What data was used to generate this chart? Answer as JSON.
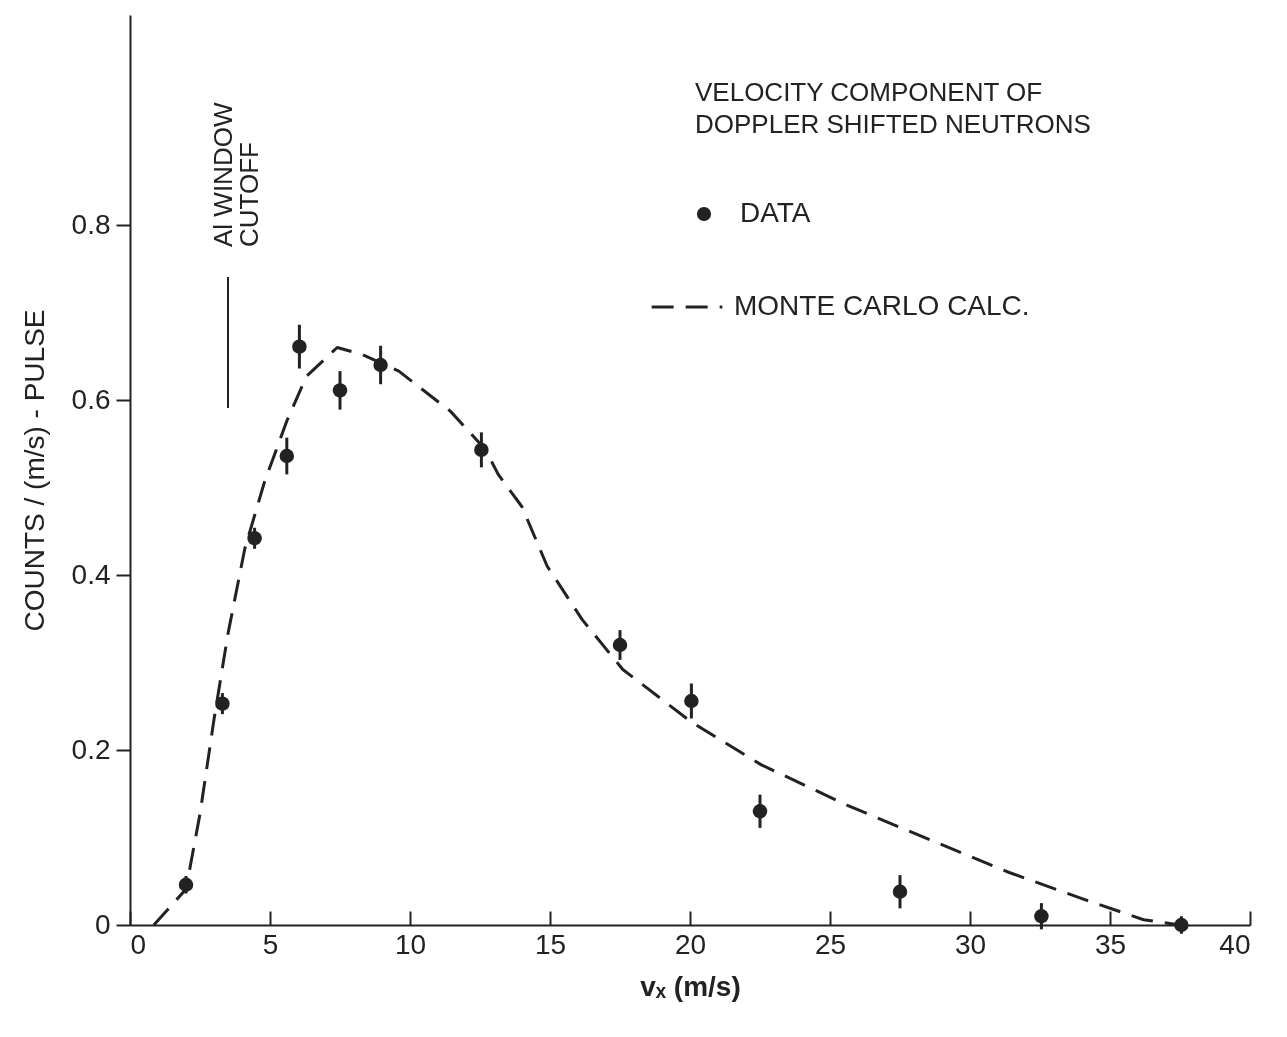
{
  "chart_data": {
    "type": "scatter",
    "title": "VELOCITY COMPONENT OF\nDOPPLER SHIFTED NEUTRONS",
    "xlabel": "vₓ (m/s)",
    "ylabel": "COUNTS / (m/s) - PULSE",
    "xlim": [
      0,
      40
    ],
    "xticks": [
      0,
      5,
      10,
      15,
      20,
      25,
      30,
      35,
      40
    ],
    "ylim": [
      0,
      1.04
    ],
    "yticks": [
      0,
      0.2,
      0.4,
      0.6,
      0.8
    ],
    "legend": "top right",
    "grid": false,
    "annotations": [
      "Al WINDOW\nCUTOFF"
    ],
    "series": [
      {
        "name": "DATA",
        "marker": "circle",
        "color": "#222222",
        "x": [
          2,
          3.3,
          4.45,
          5.6,
          6.05,
          7.5,
          8.95,
          12.55,
          17.5,
          20.05,
          22.5,
          27.5,
          32.55,
          37.55
        ],
        "values": [
          0.046,
          0.253,
          0.442,
          0.536,
          0.661,
          0.611,
          0.64,
          0.543,
          0.32,
          0.256,
          0.13,
          0.038,
          0.01,
          0
        ],
        "errors": [
          0.01,
          0.012,
          0.012,
          0.021,
          0.025,
          0.022,
          0.022,
          0.02,
          0.017,
          0.02,
          0.019,
          0.019,
          0.015,
          0.01
        ]
      },
      {
        "name": "MONTE CARLO CALC.",
        "type": "line",
        "line_style": "dashed",
        "color": "#222222",
        "x": [
          0.85,
          2,
          2.5,
          3,
          3.5,
          4.1,
          4.8,
          5.6,
          6.3,
          7.4,
          8.3,
          9.6,
          11.45,
          12.7,
          13.15,
          14,
          14.9,
          16.15,
          17.6,
          20.05,
          22.55,
          25.6,
          28.6,
          31.4,
          34.1,
          36.2,
          37.5
        ],
        "values": [
          0,
          0.041,
          0.127,
          0.235,
          0.333,
          0.43,
          0.506,
          0.576,
          0.627,
          0.66,
          0.652,
          0.633,
          0.587,
          0.543,
          0.515,
          0.478,
          0.41,
          0.349,
          0.292,
          0.232,
          0.183,
          0.137,
          0.097,
          0.06,
          0.029,
          0.006,
          0
        ]
      }
    ]
  }
}
